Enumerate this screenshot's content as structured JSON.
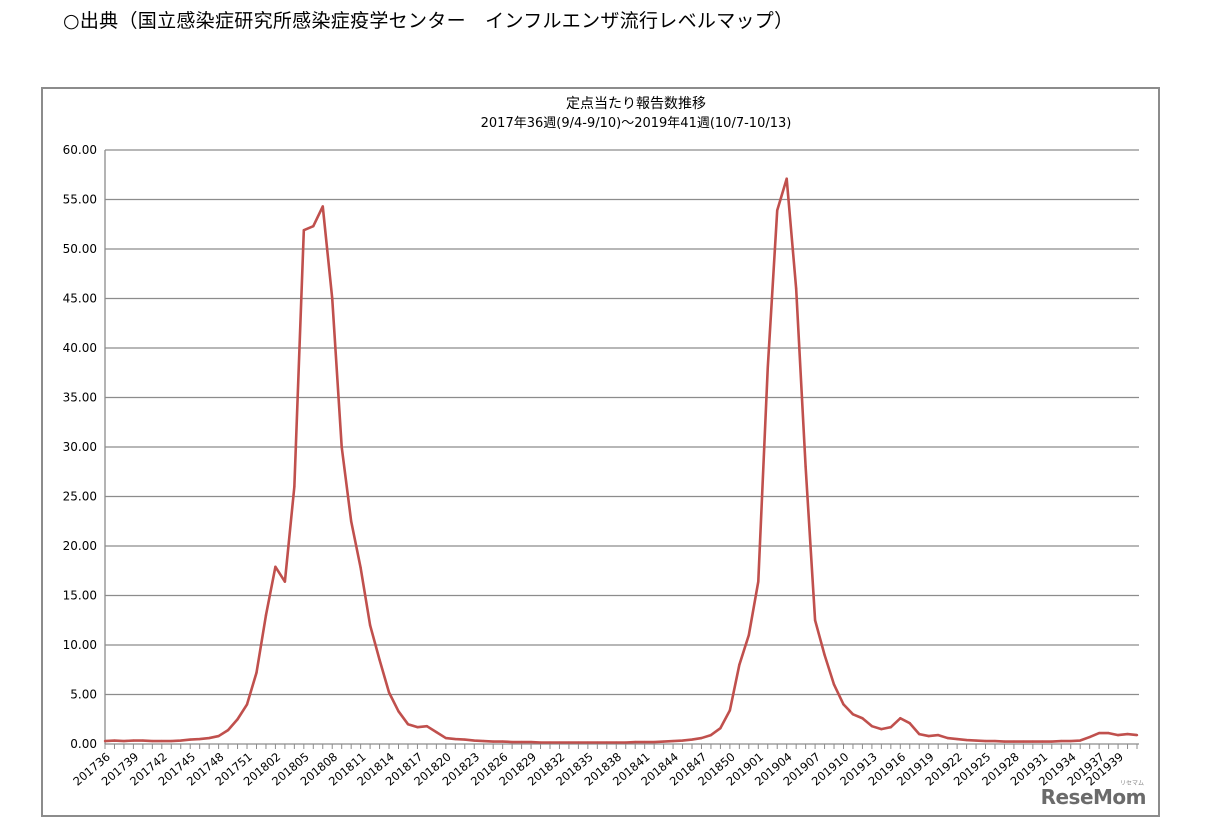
{
  "page": {
    "source_note": "○出典（国立感染症研究所感染症疫学センター　インフルエンザ流行レベルマップ）",
    "brand": "ReseMom",
    "brand_small": "リセマム"
  },
  "chart_data": {
    "type": "line",
    "title": "定点当たり報告数推移",
    "subtitle": "2017年36週(9/4-9/10)～2019年41週(10/7-10/13)",
    "xlabel": "",
    "ylabel": "",
    "ylim": [
      0,
      60
    ],
    "yticks": [
      "0.00",
      "5.00",
      "10.00",
      "15.00",
      "20.00",
      "25.00",
      "30.00",
      "35.00",
      "40.00",
      "45.00",
      "50.00",
      "55.00",
      "60.00"
    ],
    "grid": true,
    "legend": "none",
    "line_color": "#c0504d",
    "x": [
      "201736",
      "201737",
      "201738",
      "201739",
      "201740",
      "201741",
      "201742",
      "201743",
      "201744",
      "201745",
      "201746",
      "201747",
      "201748",
      "201749",
      "201750",
      "201751",
      "201752",
      "201801",
      "201802",
      "201803",
      "201804",
      "201805",
      "201806",
      "201807",
      "201808",
      "201809",
      "201810",
      "201811",
      "201812",
      "201813",
      "201814",
      "201815",
      "201816",
      "201817",
      "201818",
      "201819",
      "201820",
      "201821",
      "201822",
      "201823",
      "201824",
      "201825",
      "201826",
      "201827",
      "201828",
      "201829",
      "201830",
      "201831",
      "201832",
      "201833",
      "201834",
      "201835",
      "201836",
      "201837",
      "201838",
      "201839",
      "201840",
      "201841",
      "201842",
      "201843",
      "201844",
      "201845",
      "201846",
      "201847",
      "201848",
      "201849",
      "201850",
      "201851",
      "201852",
      "201901",
      "201902",
      "201903",
      "201904",
      "201905",
      "201906",
      "201907",
      "201908",
      "201909",
      "201910",
      "201911",
      "201912",
      "201913",
      "201914",
      "201915",
      "201916",
      "201917",
      "201918",
      "201919",
      "201920",
      "201921",
      "201922",
      "201923",
      "201924",
      "201925",
      "201926",
      "201927",
      "201928",
      "201929",
      "201930",
      "201931",
      "201932",
      "201933",
      "201934",
      "201935",
      "201936",
      "201937",
      "201938",
      "201939",
      "201940",
      "201941"
    ],
    "x_tick_labels": [
      "201736",
      "201739",
      "201742",
      "201745",
      "201748",
      "201751",
      "201802",
      "201805",
      "201808",
      "201811",
      "201814",
      "201817",
      "201820",
      "201823",
      "201826",
      "201829",
      "201832",
      "201835",
      "201838",
      "201841",
      "201844",
      "201847",
      "201850",
      "201901",
      "201904",
      "201907",
      "201910",
      "201913",
      "201916",
      "201919",
      "201922",
      "201925",
      "201928",
      "201931",
      "201934",
      "201937",
      "201939"
    ],
    "series": [
      {
        "values": [
          0.3,
          0.35,
          0.3,
          0.35,
          0.35,
          0.3,
          0.3,
          0.3,
          0.35,
          0.45,
          0.5,
          0.6,
          0.8,
          1.4,
          2.5,
          4.0,
          7.2,
          13.0,
          17.9,
          16.4,
          26.0,
          51.9,
          52.3,
          54.3,
          45.0,
          30.0,
          22.5,
          17.8,
          12.0,
          8.5,
          5.2,
          3.3,
          2.0,
          1.7,
          1.8,
          1.2,
          0.6,
          0.5,
          0.45,
          0.35,
          0.3,
          0.25,
          0.25,
          0.2,
          0.2,
          0.2,
          0.15,
          0.15,
          0.15,
          0.15,
          0.15,
          0.15,
          0.15,
          0.15,
          0.15,
          0.15,
          0.2,
          0.2,
          0.2,
          0.25,
          0.3,
          0.35,
          0.45,
          0.6,
          0.9,
          1.6,
          3.4,
          8.0,
          11.0,
          16.4,
          38.0,
          53.9,
          57.1,
          46.0,
          28.0,
          12.5,
          9.0,
          6.0,
          4.0,
          3.0,
          2.6,
          1.8,
          1.5,
          1.7,
          2.6,
          2.1,
          1.0,
          0.8,
          0.9,
          0.6,
          0.5,
          0.4,
          0.35,
          0.3,
          0.3,
          0.25,
          0.25,
          0.25,
          0.25,
          0.25,
          0.25,
          0.3,
          0.3,
          0.35,
          0.7,
          1.1,
          1.1,
          0.9,
          1.0,
          0.9
        ]
      }
    ]
  }
}
